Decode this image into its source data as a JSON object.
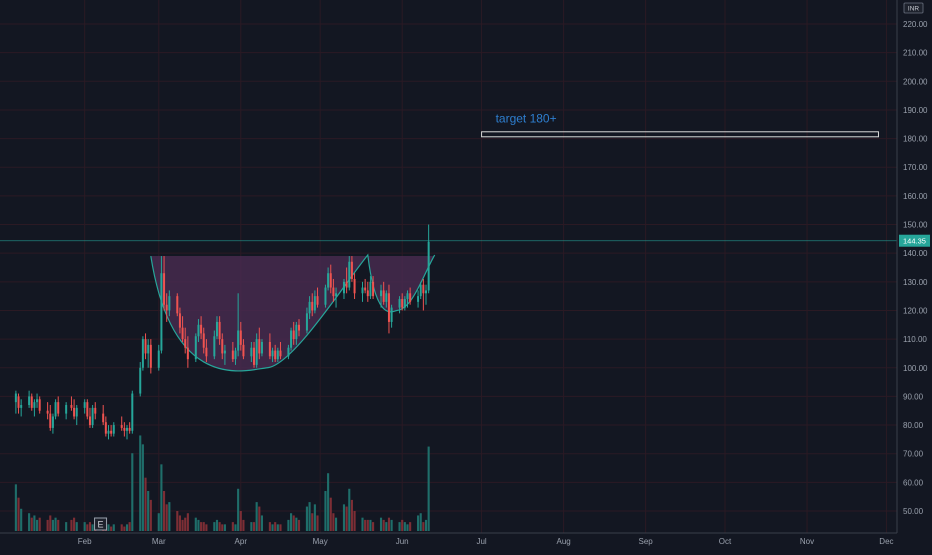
{
  "chart_data": {
    "type": "candlestick",
    "title": "",
    "currency": "INR",
    "last_price_label": "144.35",
    "last_price": 144.35,
    "ylim": [
      45,
      224
    ],
    "y_ticks": [
      50,
      60,
      70,
      80,
      90,
      100,
      110,
      120,
      130,
      140,
      150,
      160,
      170,
      180,
      190,
      200,
      210,
      220
    ],
    "y_tick_labels": [
      "50.00",
      "60.00",
      "70.00",
      "80.00",
      "90.00",
      "100.00",
      "110.00",
      "120.00",
      "130.00",
      "140.00",
      "150.00",
      "160.00",
      "170.00",
      "180.00",
      "190.00",
      "200.00",
      "210.00",
      "220.00"
    ],
    "x_labels": [
      "Feb",
      "Mar",
      "Apr",
      "May",
      "Jun",
      "Jul",
      "Aug",
      "Sep",
      "Oct",
      "Nov",
      "Dec"
    ],
    "x_label_days": [
      32,
      60,
      91,
      121,
      152,
      182,
      213,
      244,
      274,
      305,
      335
    ],
    "date_range": [
      "2021-01-06",
      "2021-12-31"
    ],
    "grid": true,
    "annotations": {
      "target_label": "target 180+",
      "target_price": 181.5,
      "target_start_day": 182,
      "target_end_day": 332,
      "cup_rim_price": 139,
      "cup_bottom_price": 100,
      "cup_start_day": 57,
      "cup_bottom_day": 101,
      "cup_end_day": 139,
      "handle_bottom_price": 120,
      "handle_bottom_day": 150,
      "handle_end_day": 162
    },
    "candles": [
      {
        "day": 6,
        "o": 88,
        "h": 92,
        "l": 84,
        "c": 91,
        "v": 21
      },
      {
        "day": 7,
        "o": 90,
        "h": 91,
        "l": 84,
        "c": 86,
        "v": 15
      },
      {
        "day": 8,
        "o": 86,
        "h": 89,
        "l": 83,
        "c": 87,
        "v": 10
      },
      {
        "day": 11,
        "o": 87,
        "h": 92,
        "l": 86,
        "c": 90,
        "v": 8
      },
      {
        "day": 12,
        "o": 90,
        "h": 91,
        "l": 85,
        "c": 86,
        "v": 6
      },
      {
        "day": 13,
        "o": 86,
        "h": 89,
        "l": 83,
        "c": 88,
        "v": 7
      },
      {
        "day": 14,
        "o": 88,
        "h": 91,
        "l": 86,
        "c": 89,
        "v": 5
      },
      {
        "day": 15,
        "o": 89,
        "h": 90,
        "l": 84,
        "c": 85,
        "v": 6
      },
      {
        "day": 18,
        "o": 85,
        "h": 88,
        "l": 82,
        "c": 84,
        "v": 5
      },
      {
        "day": 19,
        "o": 84,
        "h": 87,
        "l": 78,
        "c": 79,
        "v": 7
      },
      {
        "day": 20,
        "o": 79,
        "h": 84,
        "l": 77,
        "c": 83,
        "v": 5
      },
      {
        "day": 21,
        "o": 83,
        "h": 89,
        "l": 82,
        "c": 88,
        "v": 6
      },
      {
        "day": 22,
        "o": 88,
        "h": 90,
        "l": 83,
        "c": 84,
        "v": 5
      },
      {
        "day": 25,
        "o": 84,
        "h": 88,
        "l": 82,
        "c": 87,
        "v": 4
      },
      {
        "day": 27,
        "o": 87,
        "h": 90,
        "l": 85,
        "c": 86,
        "v": 5
      },
      {
        "day": 28,
        "o": 86,
        "h": 89,
        "l": 82,
        "c": 83,
        "v": 6
      },
      {
        "day": 29,
        "o": 83,
        "h": 87,
        "l": 80,
        "c": 86,
        "v": 4
      },
      {
        "day": 32,
        "o": 86,
        "h": 89,
        "l": 84,
        "c": 88,
        "v": 4
      },
      {
        "day": 33,
        "o": 88,
        "h": 89,
        "l": 82,
        "c": 83,
        "v": 3
      },
      {
        "day": 34,
        "o": 83,
        "h": 86,
        "l": 79,
        "c": 80,
        "v": 4
      },
      {
        "day": 35,
        "o": 80,
        "h": 87,
        "l": 79,
        "c": 86,
        "v": 3
      },
      {
        "day": 36,
        "o": 86,
        "h": 88,
        "l": 82,
        "c": 84,
        "v": 2
      },
      {
        "day": 39,
        "o": 84,
        "h": 87,
        "l": 80,
        "c": 81,
        "v": 3
      },
      {
        "day": 40,
        "o": 81,
        "h": 83,
        "l": 76,
        "c": 77,
        "v": 4
      },
      {
        "day": 41,
        "o": 77,
        "h": 80,
        "l": 75,
        "c": 78,
        "v": 3
      },
      {
        "day": 42,
        "o": 78,
        "h": 80,
        "l": 76,
        "c": 77,
        "v": 2
      },
      {
        "day": 43,
        "o": 77,
        "h": 81,
        "l": 76,
        "c": 80,
        "v": 3
      },
      {
        "day": 46,
        "o": 80,
        "h": 83,
        "l": 78,
        "c": 79,
        "v": 3
      },
      {
        "day": 47,
        "o": 79,
        "h": 81,
        "l": 76,
        "c": 78,
        "v": 2
      },
      {
        "day": 48,
        "o": 78,
        "h": 80,
        "l": 75,
        "c": 79,
        "v": 3
      },
      {
        "day": 49,
        "o": 79,
        "h": 81,
        "l": 77,
        "c": 78,
        "v": 4
      },
      {
        "day": 50,
        "o": 78,
        "h": 92,
        "l": 77,
        "c": 91,
        "v": 35
      },
      {
        "day": 53,
        "o": 91,
        "h": 102,
        "l": 90,
        "c": 100,
        "v": 43
      },
      {
        "day": 54,
        "o": 100,
        "h": 111,
        "l": 99,
        "c": 110,
        "v": 39
      },
      {
        "day": 55,
        "o": 110,
        "h": 112,
        "l": 103,
        "c": 105,
        "v": 24
      },
      {
        "day": 56,
        "o": 105,
        "h": 110,
        "l": 100,
        "c": 108,
        "v": 18
      },
      {
        "day": 57,
        "o": 108,
        "h": 110,
        "l": 98,
        "c": 100,
        "v": 14
      },
      {
        "day": 60,
        "o": 100,
        "h": 108,
        "l": 99,
        "c": 106,
        "v": 8
      },
      {
        "day": 61,
        "o": 106,
        "h": 139,
        "l": 105,
        "c": 133,
        "v": 30
      },
      {
        "day": 62,
        "o": 133,
        "h": 139,
        "l": 120,
        "c": 122,
        "v": 18
      },
      {
        "day": 63,
        "o": 122,
        "h": 126,
        "l": 116,
        "c": 120,
        "v": 12
      },
      {
        "day": 64,
        "o": 120,
        "h": 127,
        "l": 118,
        "c": 125,
        "v": 13
      },
      {
        "day": 67,
        "o": 125,
        "h": 126,
        "l": 118,
        "c": 119,
        "v": 9
      },
      {
        "day": 68,
        "o": 119,
        "h": 121,
        "l": 112,
        "c": 114,
        "v": 7
      },
      {
        "day": 69,
        "o": 114,
        "h": 118,
        "l": 109,
        "c": 110,
        "v": 5
      },
      {
        "day": 70,
        "o": 110,
        "h": 114,
        "l": 105,
        "c": 107,
        "v": 6
      },
      {
        "day": 71,
        "o": 107,
        "h": 111,
        "l": 100,
        "c": 103,
        "v": 8
      },
      {
        "day": 74,
        "o": 103,
        "h": 112,
        "l": 102,
        "c": 111,
        "v": 6
      },
      {
        "day": 75,
        "o": 111,
        "h": 117,
        "l": 109,
        "c": 115,
        "v": 5
      },
      {
        "day": 76,
        "o": 115,
        "h": 118,
        "l": 110,
        "c": 112,
        "v": 4
      },
      {
        "day": 77,
        "o": 112,
        "h": 114,
        "l": 105,
        "c": 107,
        "v": 4
      },
      {
        "day": 78,
        "o": 107,
        "h": 110,
        "l": 102,
        "c": 104,
        "v": 3
      },
      {
        "day": 81,
        "o": 104,
        "h": 113,
        "l": 103,
        "c": 111,
        "v": 4
      },
      {
        "day": 82,
        "o": 111,
        "h": 118,
        "l": 110,
        "c": 116,
        "v": 5
      },
      {
        "day": 83,
        "o": 116,
        "h": 118,
        "l": 108,
        "c": 110,
        "v": 4
      },
      {
        "day": 84,
        "o": 110,
        "h": 112,
        "l": 103,
        "c": 105,
        "v": 3
      },
      {
        "day": 85,
        "o": 105,
        "h": 108,
        "l": 101,
        "c": 106,
        "v": 3
      },
      {
        "day": 88,
        "o": 106,
        "h": 109,
        "l": 102,
        "c": 103,
        "v": 4
      },
      {
        "day": 89,
        "o": 103,
        "h": 107,
        "l": 101,
        "c": 106,
        "v": 3
      },
      {
        "day": 90,
        "o": 106,
        "h": 126,
        "l": 104,
        "c": 113,
        "v": 19
      },
      {
        "day": 91,
        "o": 113,
        "h": 116,
        "l": 106,
        "c": 108,
        "v": 9
      },
      {
        "day": 92,
        "o": 108,
        "h": 110,
        "l": 103,
        "c": 104,
        "v": 5
      },
      {
        "day": 95,
        "o": 104,
        "h": 109,
        "l": 102,
        "c": 107,
        "v": 4
      },
      {
        "day": 96,
        "o": 107,
        "h": 109,
        "l": 100,
        "c": 101,
        "v": 4
      },
      {
        "day": 97,
        "o": 101,
        "h": 112,
        "l": 100,
        "c": 110,
        "v": 13
      },
      {
        "day": 98,
        "o": 110,
        "h": 114,
        "l": 103,
        "c": 105,
        "v": 11
      },
      {
        "day": 99,
        "o": 105,
        "h": 110,
        "l": 104,
        "c": 109,
        "v": 7
      },
      {
        "day": 102,
        "o": 109,
        "h": 112,
        "l": 103,
        "c": 104,
        "v": 4
      },
      {
        "day": 103,
        "o": 104,
        "h": 107,
        "l": 102,
        "c": 106,
        "v": 3
      },
      {
        "day": 104,
        "o": 106,
        "h": 108,
        "l": 102,
        "c": 103,
        "v": 4
      },
      {
        "day": 105,
        "o": 103,
        "h": 107,
        "l": 102,
        "c": 106,
        "v": 3
      },
      {
        "day": 106,
        "o": 106,
        "h": 109,
        "l": 103,
        "c": 104,
        "v": 3
      },
      {
        "day": 109,
        "o": 104,
        "h": 108,
        "l": 103,
        "c": 107,
        "v": 5
      },
      {
        "day": 110,
        "o": 107,
        "h": 114,
        "l": 106,
        "c": 113,
        "v": 8
      },
      {
        "day": 111,
        "o": 113,
        "h": 116,
        "l": 108,
        "c": 110,
        "v": 7
      },
      {
        "day": 112,
        "o": 110,
        "h": 116,
        "l": 108,
        "c": 115,
        "v": 6
      },
      {
        "day": 113,
        "o": 115,
        "h": 117,
        "l": 111,
        "c": 113,
        "v": 5
      },
      {
        "day": 116,
        "o": 113,
        "h": 121,
        "l": 112,
        "c": 119,
        "v": 11
      },
      {
        "day": 117,
        "o": 119,
        "h": 125,
        "l": 117,
        "c": 123,
        "v": 13
      },
      {
        "day": 118,
        "o": 123,
        "h": 126,
        "l": 118,
        "c": 120,
        "v": 8
      },
      {
        "day": 119,
        "o": 120,
        "h": 127,
        "l": 119,
        "c": 125,
        "v": 12
      },
      {
        "day": 120,
        "o": 125,
        "h": 128,
        "l": 121,
        "c": 122,
        "v": 7
      },
      {
        "day": 123,
        "o": 122,
        "h": 129,
        "l": 121,
        "c": 128,
        "v": 18
      },
      {
        "day": 124,
        "o": 128,
        "h": 135,
        "l": 127,
        "c": 133,
        "v": 26
      },
      {
        "day": 125,
        "o": 133,
        "h": 136,
        "l": 126,
        "c": 128,
        "v": 15
      },
      {
        "day": 126,
        "o": 128,
        "h": 131,
        "l": 123,
        "c": 125,
        "v": 8
      },
      {
        "day": 127,
        "o": 125,
        "h": 128,
        "l": 121,
        "c": 126,
        "v": 6
      },
      {
        "day": 130,
        "o": 126,
        "h": 131,
        "l": 124,
        "c": 130,
        "v": 12
      },
      {
        "day": 131,
        "o": 130,
        "h": 135,
        "l": 126,
        "c": 128,
        "v": 11
      },
      {
        "day": 132,
        "o": 128,
        "h": 139,
        "l": 127,
        "c": 137,
        "v": 19
      },
      {
        "day": 133,
        "o": 137,
        "h": 139,
        "l": 130,
        "c": 131,
        "v": 14
      },
      {
        "day": 134,
        "o": 131,
        "h": 133,
        "l": 124,
        "c": 126,
        "v": 9
      },
      {
        "day": 137,
        "o": 126,
        "h": 130,
        "l": 123,
        "c": 128,
        "v": 6
      },
      {
        "day": 138,
        "o": 128,
        "h": 131,
        "l": 126,
        "c": 127,
        "v": 5
      },
      {
        "day": 139,
        "o": 127,
        "h": 130,
        "l": 123,
        "c": 125,
        "v": 5
      },
      {
        "day": 140,
        "o": 125,
        "h": 132,
        "l": 124,
        "c": 130,
        "v": 5
      },
      {
        "day": 141,
        "o": 130,
        "h": 132,
        "l": 124,
        "c": 125,
        "v": 4
      },
      {
        "day": 144,
        "o": 125,
        "h": 129,
        "l": 121,
        "c": 127,
        "v": 6
      },
      {
        "day": 145,
        "o": 127,
        "h": 130,
        "l": 122,
        "c": 123,
        "v": 5
      },
      {
        "day": 146,
        "o": 123,
        "h": 127,
        "l": 121,
        "c": 126,
        "v": 4
      },
      {
        "day": 147,
        "o": 126,
        "h": 129,
        "l": 112,
        "c": 116,
        "v": 6
      },
      {
        "day": 148,
        "o": 116,
        "h": 122,
        "l": 114,
        "c": 121,
        "v": 5
      },
      {
        "day": 151,
        "o": 121,
        "h": 125,
        "l": 119,
        "c": 124,
        "v": 4
      },
      {
        "day": 152,
        "o": 124,
        "h": 126,
        "l": 120,
        "c": 121,
        "v": 5
      },
      {
        "day": 153,
        "o": 121,
        "h": 125,
        "l": 120,
        "c": 124,
        "v": 4
      },
      {
        "day": 154,
        "o": 124,
        "h": 127,
        "l": 121,
        "c": 126,
        "v": 3
      },
      {
        "day": 155,
        "o": 126,
        "h": 128,
        "l": 122,
        "c": 123,
        "v": 4
      },
      {
        "day": 158,
        "o": 123,
        "h": 127,
        "l": 121,
        "c": 125,
        "v": 7
      },
      {
        "day": 159,
        "o": 125,
        "h": 130,
        "l": 124,
        "c": 129,
        "v": 8
      },
      {
        "day": 160,
        "o": 129,
        "h": 131,
        "l": 120,
        "c": 126,
        "v": 4
      },
      {
        "day": 161,
        "o": 126,
        "h": 129,
        "l": 122,
        "c": 127,
        "v": 5
      },
      {
        "day": 162,
        "o": 127,
        "h": 150,
        "l": 126,
        "c": 144,
        "v": 38
      }
    ]
  },
  "axis_labels": {
    "currency_badge": "INR",
    "last_price_badge": "144.35",
    "earnings_marker": "E"
  },
  "colors": {
    "background": "#131722",
    "grid": "#2b1a24",
    "up": "#26a69a",
    "down": "#ef5350",
    "up_volume": "#1f6e6a",
    "down_volume": "#7d2e35",
    "cup_fill": "#4a2c52",
    "cup_line": "#26a69a",
    "target_text": "#2e7fd0",
    "target_box": "#d8d8d8",
    "price_line": "#26a69a",
    "axis_text": "#9aa1ad",
    "axis_line": "#3a3f4a"
  }
}
